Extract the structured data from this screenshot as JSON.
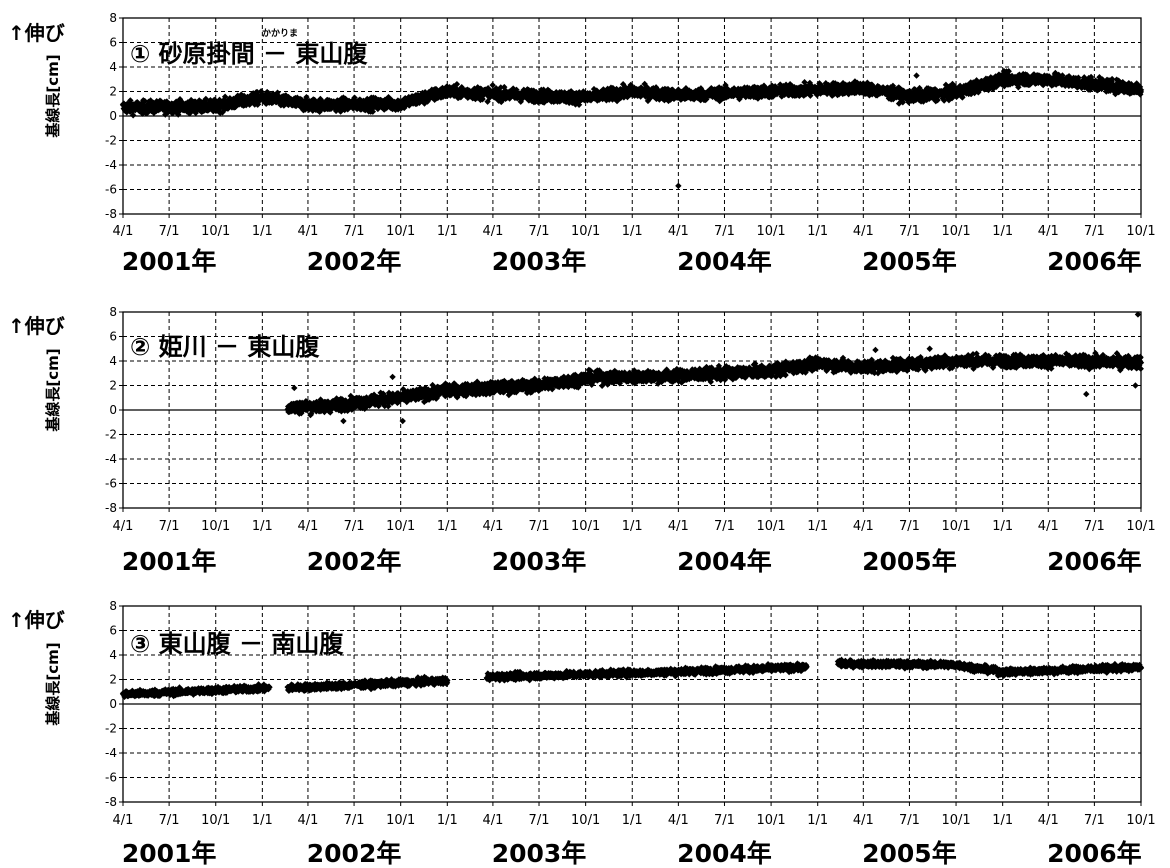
{
  "chart_data": [
    {
      "type": "scatter",
      "title": "① 砂原掛間 － 東山腹",
      "title_ruby": "かかりま",
      "extension_label": "↑伸び",
      "ylabel": "基線長[cm]",
      "ylim": [
        -8,
        8
      ],
      "yticks": [
        "8",
        "6",
        "4",
        "2",
        "0",
        "-2",
        "-4",
        "-6",
        "-8"
      ],
      "xlim": [
        "2001-04-01",
        "2006-10-01"
      ],
      "x_tick_labels": [
        "4/1",
        "7/1",
        "10/1",
        "1/1",
        "4/1",
        "7/1",
        "10/1",
        "1/1",
        "4/1",
        "7/1",
        "10/1",
        "1/1",
        "4/1",
        "7/1",
        "10/1",
        "1/1",
        "4/1",
        "7/1",
        "10/1",
        "1/1",
        "4/1",
        "7/1",
        "10/1"
      ],
      "year_labels": [
        "2001年",
        "2002年",
        "2003年",
        "2004年",
        "2005年",
        "2006年"
      ],
      "grid": true,
      "marker": "diamond",
      "series": [
        {
          "trend": [
            [
              "2001-04-01",
              0.7
            ],
            [
              "2001-10-01",
              0.8
            ],
            [
              "2002-01-01",
              1.5
            ],
            [
              "2002-04-01",
              0.9
            ],
            [
              "2002-10-01",
              1.0
            ],
            [
              "2003-01-01",
              2.0
            ],
            [
              "2003-04-01",
              1.8
            ],
            [
              "2003-10-01",
              1.5
            ],
            [
              "2004-01-01",
              2.0
            ],
            [
              "2004-04-01",
              1.7
            ],
            [
              "2004-10-01",
              2.0
            ],
            [
              "2005-04-01",
              2.3
            ],
            [
              "2005-07-01",
              1.6
            ],
            [
              "2005-10-01",
              1.9
            ],
            [
              "2006-01-01",
              3.0
            ],
            [
              "2006-04-01",
              3.0
            ],
            [
              "2006-10-01",
              2.2
            ]
          ],
          "outliers": [
            [
              "2004-04-01",
              -5.7
            ],
            [
              "2005-07-15",
              3.3
            ]
          ]
        }
      ]
    },
    {
      "type": "scatter",
      "title": "② 姫川 － 東山腹",
      "extension_label": "↑伸び",
      "ylabel": "基線長[cm]",
      "ylim": [
        -8,
        8
      ],
      "yticks": [
        "8",
        "6",
        "4",
        "2",
        "0",
        "-2",
        "-4",
        "-6",
        "-8"
      ],
      "xlim": [
        "2001-04-01",
        "2006-10-01"
      ],
      "x_tick_labels": [
        "4/1",
        "7/1",
        "10/1",
        "1/1",
        "4/1",
        "7/1",
        "10/1",
        "1/1",
        "4/1",
        "7/1",
        "10/1",
        "1/1",
        "4/1",
        "7/1",
        "10/1",
        "1/1",
        "4/1",
        "7/1",
        "10/1",
        "1/1",
        "4/1",
        "7/1",
        "10/1"
      ],
      "year_labels": [
        "2001年",
        "2002年",
        "2003年",
        "2004年",
        "2005年",
        "2006年"
      ],
      "grid": true,
      "marker": "diamond",
      "series": [
        {
          "trend": [
            [
              "2002-02-20",
              0.2
            ],
            [
              "2002-05-01",
              0.3
            ],
            [
              "2002-10-01",
              1.0
            ],
            [
              "2003-01-01",
              1.6
            ],
            [
              "2003-07-01",
              2.0
            ],
            [
              "2003-10-01",
              2.6
            ],
            [
              "2004-04-01",
              2.8
            ],
            [
              "2004-10-01",
              3.2
            ],
            [
              "2005-01-01",
              3.8
            ],
            [
              "2005-04-01",
              3.5
            ],
            [
              "2005-10-01",
              4.0
            ],
            [
              "2006-04-01",
              4.0
            ],
            [
              "2006-10-01",
              3.9
            ]
          ],
          "outliers": [
            [
              "2006-09-25",
              7.8
            ],
            [
              "2006-09-20",
              2.0
            ],
            [
              "2006-06-15",
              1.3
            ],
            [
              "2002-03-05",
              1.8
            ],
            [
              "2002-09-15",
              2.7
            ],
            [
              "2002-10-05",
              -0.9
            ],
            [
              "2002-06-10",
              -0.9
            ],
            [
              "2005-04-25",
              4.9
            ],
            [
              "2005-08-10",
              5.0
            ]
          ]
        }
      ]
    },
    {
      "type": "scatter",
      "title": "③ 東山腹 － 南山腹",
      "extension_label": "↑伸び",
      "ylabel": "基線長[cm]",
      "ylim": [
        -8,
        8
      ],
      "yticks": [
        "8",
        "6",
        "4",
        "2",
        "0",
        "-2",
        "-4",
        "-6",
        "-8"
      ],
      "xlim": [
        "2001-04-01",
        "2006-10-01"
      ],
      "x_tick_labels": [
        "4/1",
        "7/1",
        "10/1",
        "1/1",
        "4/1",
        "7/1",
        "10/1",
        "1/1",
        "4/1",
        "7/1",
        "10/1",
        "1/1",
        "4/1",
        "7/1",
        "10/1",
        "1/1",
        "4/1",
        "7/1",
        "10/1",
        "1/1",
        "4/1",
        "7/1",
        "10/1"
      ],
      "year_labels": [
        "2001年",
        "2002年",
        "2003年",
        "2004年",
        "2005年",
        "2006年"
      ],
      "grid": true,
      "marker": "diamond",
      "series": [
        {
          "segments": [
            [
              [
                "2001-04-01",
                0.8
              ],
              [
                "2002-01-15",
                1.3
              ]
            ],
            [
              [
                "2002-02-20",
                1.3
              ],
              [
                "2003-01-01",
                1.9
              ]
            ],
            [
              [
                "2003-03-20",
                2.2
              ],
              [
                "2004-03-01",
                2.6
              ],
              [
                "2004-12-10",
                3.0
              ]
            ],
            [
              [
                "2005-02-10",
                3.3
              ],
              [
                "2005-10-01",
                3.2
              ],
              [
                "2006-01-01",
                2.6
              ],
              [
                "2006-10-01",
                3.0
              ]
            ]
          ],
          "outliers": []
        }
      ]
    }
  ]
}
